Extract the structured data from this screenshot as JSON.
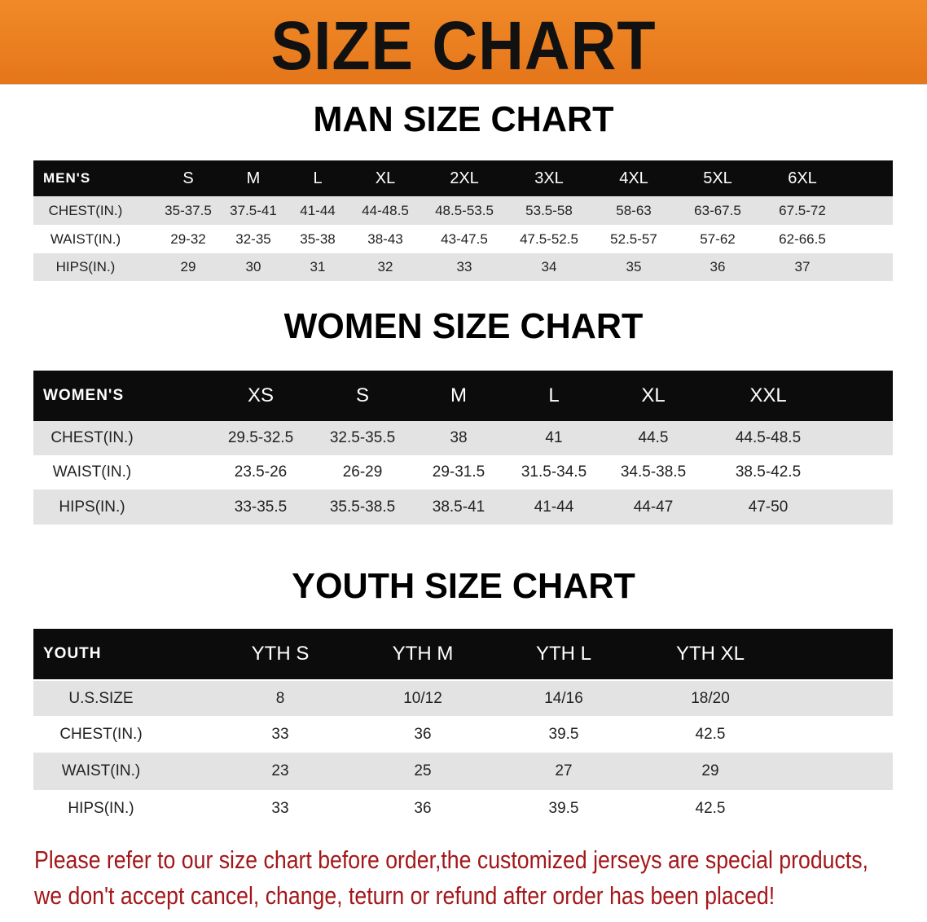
{
  "banner_title": "SIZE CHART",
  "men": {
    "title": "MAN SIZE CHART",
    "header": [
      "MEN'S",
      "S",
      "M",
      "L",
      "XL",
      "2XL",
      "3XL",
      "4XL",
      "5XL",
      "6XL"
    ],
    "rows": [
      [
        "CHEST(IN.)",
        "35-37.5",
        "37.5-41",
        "41-44",
        "44-48.5",
        "48.5-53.5",
        "53.5-58",
        "58-63",
        "63-67.5",
        "67.5-72"
      ],
      [
        "WAIST(IN.)",
        "29-32",
        "32-35",
        "35-38",
        "38-43",
        "43-47.5",
        "47.5-52.5",
        "52.5-57",
        "57-62",
        "62-66.5"
      ],
      [
        "HIPS(IN.)",
        "29",
        "30",
        "31",
        "32",
        "33",
        "34",
        "35",
        "36",
        "37"
      ]
    ]
  },
  "women": {
    "title": "WOMEN SIZE CHART",
    "header": [
      "WOMEN'S",
      "XS",
      "S",
      "M",
      "L",
      "XL",
      "XXL"
    ],
    "rows": [
      [
        "CHEST(IN.)",
        "29.5-32.5",
        "32.5-35.5",
        "38",
        "41",
        "44.5",
        "44.5-48.5"
      ],
      [
        "WAIST(IN.)",
        "23.5-26",
        "26-29",
        "29-31.5",
        "31.5-34.5",
        "34.5-38.5",
        "38.5-42.5"
      ],
      [
        "HIPS(IN.)",
        "33-35.5",
        "35.5-38.5",
        "38.5-41",
        "41-44",
        "44-47",
        "47-50"
      ]
    ]
  },
  "youth": {
    "title": "YOUTH SIZE CHART",
    "header": [
      "YOUTH",
      "YTH S",
      "YTH M",
      "YTH L",
      "YTH XL"
    ],
    "rows": [
      [
        "U.S.SIZE",
        "8",
        "10/12",
        "14/16",
        "18/20"
      ],
      [
        "CHEST(IN.)",
        "33",
        "36",
        "39.5",
        "42.5"
      ],
      [
        "WAIST(IN.)",
        "23",
        "25",
        "27",
        "29"
      ],
      [
        "HIPS(IN.)",
        "33",
        "36",
        "39.5",
        "42.5"
      ]
    ]
  },
  "note": {
    "line1": "Please refer to our size chart before order,the customized jerseys are special products,",
    "line2": "we don't accept cancel, change, teturn or refund after order has been placed!"
  },
  "colors": {
    "banner": "#e97f20",
    "header_row": "#0c0c0c",
    "stripe": "#e3e3e3",
    "note": "#a3171a"
  }
}
